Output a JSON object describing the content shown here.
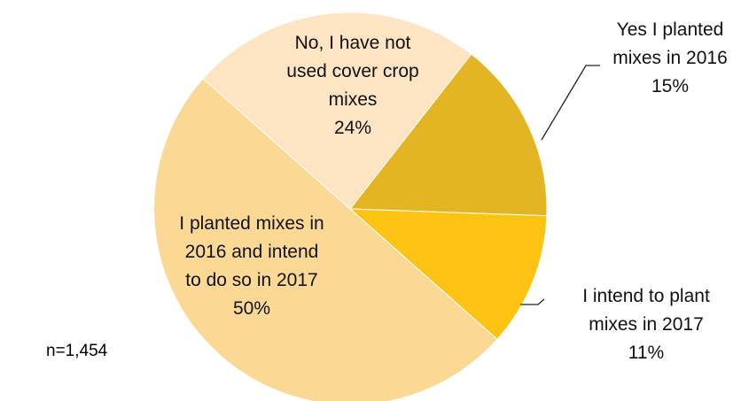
{
  "chart_data": {
    "type": "pie",
    "note": "n=1,454",
    "slices": [
      {
        "key": "yes2016",
        "label_lines": [
          "Yes I planted",
          "mixes in 2016"
        ],
        "value": 15,
        "value_label": "15%",
        "color": "#E3B523"
      },
      {
        "key": "intend2017",
        "label_lines": [
          "I intend to plant",
          "mixes in 2017"
        ],
        "value": 11,
        "value_label": "11%",
        "color": "#FCC313"
      },
      {
        "key": "both",
        "label_lines": [
          "I planted mixes in",
          "2016 and intend",
          "to do so in 2017"
        ],
        "value": 50,
        "value_label": "50%",
        "color": "#FBD994"
      },
      {
        "key": "no",
        "label_lines": [
          "No, I have not",
          "used cover crop",
          "mixes"
        ],
        "value": 24,
        "value_label": "24%",
        "color": "#FDE5C4"
      }
    ]
  }
}
